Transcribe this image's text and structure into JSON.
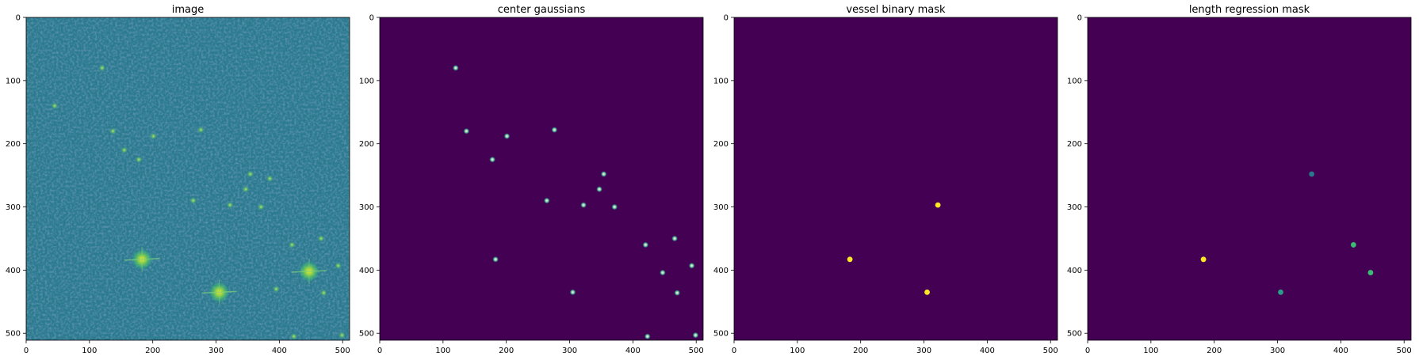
{
  "chart_data": [
    {
      "type": "heatmap",
      "title": "image",
      "xlim": [
        0,
        511
      ],
      "ylim": [
        511,
        0
      ],
      "xticks": [
        0,
        100,
        200,
        300,
        400,
        500
      ],
      "yticks": [
        0,
        100,
        200,
        300,
        400,
        500
      ],
      "background": "#2b7a8e",
      "spots": [
        [
          120,
          80
        ],
        [
          137,
          180
        ],
        [
          201,
          188
        ],
        [
          276,
          178
        ],
        [
          178,
          225
        ],
        [
          264,
          290
        ],
        [
          322,
          297
        ],
        [
          347,
          272
        ],
        [
          354,
          248
        ],
        [
          371,
          300
        ],
        [
          420,
          360
        ],
        [
          466,
          350
        ],
        [
          183,
          383
        ],
        [
          305,
          435
        ],
        [
          447,
          404
        ],
        [
          493,
          393
        ],
        [
          470,
          436
        ],
        [
          423,
          505
        ],
        [
          499,
          503
        ],
        [
          45,
          140
        ],
        [
          155,
          210
        ],
        [
          385,
          255
        ],
        [
          395,
          430
        ]
      ],
      "bright_spots": [
        [
          183,
          383
        ],
        [
          305,
          435
        ],
        [
          447,
          402
        ]
      ]
    },
    {
      "type": "heatmap",
      "title": "center gaussians",
      "xlim": [
        0,
        511
      ],
      "ylim": [
        511,
        0
      ],
      "xticks": [
        0,
        100,
        200,
        300,
        400,
        500
      ],
      "yticks": [
        0,
        100,
        200,
        300,
        400,
        500
      ],
      "background": "#440154",
      "points": [
        [
          120,
          80
        ],
        [
          137,
          180
        ],
        [
          201,
          188
        ],
        [
          276,
          178
        ],
        [
          178,
          225
        ],
        [
          354,
          248
        ],
        [
          347,
          272
        ],
        [
          264,
          290
        ],
        [
          322,
          297
        ],
        [
          371,
          300
        ],
        [
          466,
          350
        ],
        [
          420,
          360
        ],
        [
          183,
          383
        ],
        [
          493,
          393
        ],
        [
          447,
          404
        ],
        [
          305,
          435
        ],
        [
          470,
          436
        ],
        [
          423,
          505
        ],
        [
          499,
          503
        ]
      ]
    },
    {
      "type": "heatmap",
      "title": "vessel binary mask",
      "xlim": [
        0,
        511
      ],
      "ylim": [
        511,
        0
      ],
      "xticks": [
        0,
        100,
        200,
        300,
        400,
        500
      ],
      "yticks": [
        0,
        100,
        200,
        300,
        400,
        500
      ],
      "background": "#440154",
      "points": [
        [
          322,
          297
        ],
        [
          183,
          383
        ],
        [
          305,
          435
        ]
      ],
      "point_colors": [
        "#fde725",
        "#fde725",
        "#fde725"
      ]
    },
    {
      "type": "heatmap",
      "title": "length regression mask",
      "xlim": [
        0,
        511
      ],
      "ylim": [
        511,
        0
      ],
      "xticks": [
        0,
        100,
        200,
        300,
        400,
        500
      ],
      "yticks": [
        0,
        100,
        200,
        300,
        400,
        500
      ],
      "background": "#440154",
      "points": [
        [
          354,
          248
        ],
        [
          420,
          360
        ],
        [
          183,
          383
        ],
        [
          447,
          404
        ],
        [
          305,
          435
        ]
      ],
      "point_colors": [
        "#2a788e",
        "#3cbb75",
        "#fde725",
        "#3cbb75",
        "#2a9d8a"
      ]
    }
  ]
}
